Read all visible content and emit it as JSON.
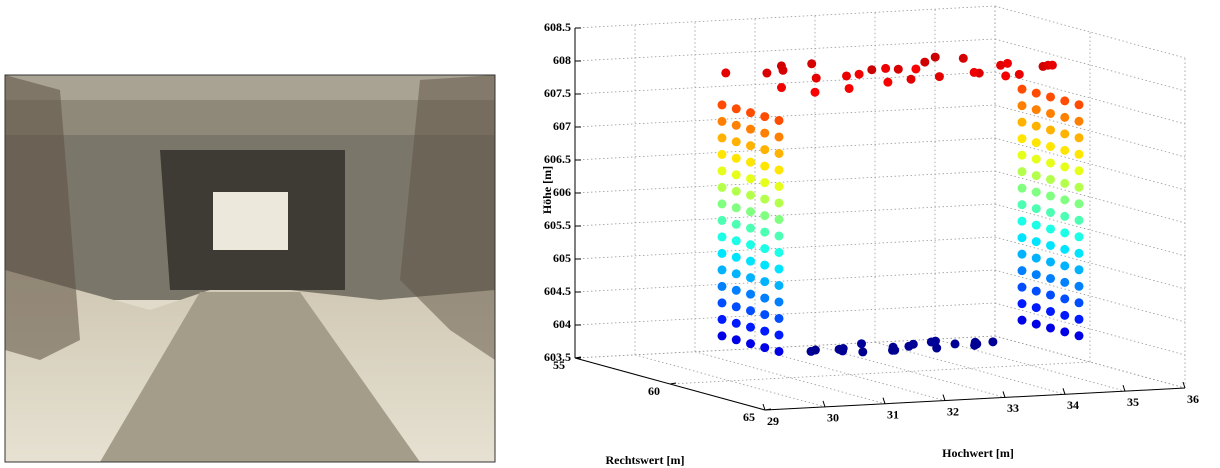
{
  "chart_data": {
    "type": "scatter3d",
    "xlabel": "Hochwert [m]",
    "ylabel": "Rechtswert [m]",
    "zlabel": "Höhe [m]",
    "xlim": [
      29,
      36
    ],
    "ylim": [
      55,
      65
    ],
    "zlim": [
      603.5,
      608.5
    ],
    "xticks": [
      29,
      30,
      31,
      32,
      33,
      34,
      35,
      36
    ],
    "yticks": [
      55,
      60,
      65
    ],
    "zticks": [
      603.5,
      604,
      604.5,
      605,
      605.5,
      606,
      606.5,
      607,
      607.5,
      608,
      608.5
    ],
    "grid": true,
    "colormap": "jet",
    "series": [
      {
        "x": [
          30.5,
          30.5,
          30.5,
          30.5,
          30.5
        ],
        "y": [
          58,
          58.75,
          59.5,
          60.25,
          61
        ],
        "z": [
          604,
          604,
          604,
          604,
          604
        ]
      },
      {
        "x": [
          30.5,
          30.5,
          30.5,
          30.5,
          30.5
        ],
        "y": [
          58,
          58.75,
          59.5,
          60.25,
          61
        ],
        "z": [
          604.25,
          604.25,
          604.25,
          604.25,
          604.25
        ]
      },
      {
        "x": [
          30.5,
          30.5,
          30.5,
          30.5,
          30.5
        ],
        "y": [
          58,
          58.75,
          59.5,
          60.25,
          61
        ],
        "z": [
          604.5,
          604.5,
          604.5,
          604.5,
          604.5
        ]
      },
      {
        "x": [
          30.5,
          30.5,
          30.5,
          30.5,
          30.5
        ],
        "y": [
          58,
          58.75,
          59.5,
          60.25,
          61
        ],
        "z": [
          604.75,
          604.75,
          604.75,
          604.75,
          604.75
        ]
      },
      {
        "x": [
          30.5,
          30.5,
          30.5,
          30.5,
          30.5
        ],
        "y": [
          58,
          58.75,
          59.5,
          60.25,
          61
        ],
        "z": [
          605,
          605,
          605,
          605,
          605
        ]
      },
      {
        "x": [
          30.5,
          30.5,
          30.5,
          30.5,
          30.5
        ],
        "y": [
          58,
          58.75,
          59.5,
          60.25,
          61
        ],
        "z": [
          605.25,
          605.25,
          605.25,
          605.25,
          605.25
        ]
      },
      {
        "x": [
          30.5,
          30.5,
          30.5,
          30.5,
          30.5
        ],
        "y": [
          58,
          58.75,
          59.5,
          60.25,
          61
        ],
        "z": [
          605.5,
          605.5,
          605.5,
          605.5,
          605.5
        ]
      },
      {
        "x": [
          30.5,
          30.5,
          30.5,
          30.5,
          30.5
        ],
        "y": [
          58,
          58.75,
          59.5,
          60.25,
          61
        ],
        "z": [
          605.75,
          605.75,
          605.75,
          605.75,
          605.75
        ]
      },
      {
        "x": [
          30.5,
          30.5,
          30.5,
          30.5,
          30.5
        ],
        "y": [
          58,
          58.75,
          59.5,
          60.25,
          61
        ],
        "z": [
          606,
          606,
          606,
          606,
          606
        ]
      },
      {
        "x": [
          30.5,
          30.5,
          30.5,
          30.5,
          30.5
        ],
        "y": [
          58,
          58.75,
          59.5,
          60.25,
          61
        ],
        "z": [
          606.25,
          606.25,
          606.25,
          606.25,
          606.25
        ]
      },
      {
        "x": [
          30.5,
          30.5,
          30.5,
          30.5,
          30.5
        ],
        "y": [
          58,
          58.75,
          59.5,
          60.25,
          61
        ],
        "z": [
          606.5,
          606.5,
          606.5,
          606.5,
          606.5
        ]
      },
      {
        "x": [
          30.5,
          30.5,
          30.5,
          30.5,
          30.5
        ],
        "y": [
          58,
          58.75,
          59.5,
          60.25,
          61
        ],
        "z": [
          606.75,
          606.75,
          606.75,
          606.75,
          606.75
        ]
      },
      {
        "x": [
          30.5,
          30.5,
          30.5,
          30.5,
          30.5
        ],
        "y": [
          58,
          58.75,
          59.5,
          60.25,
          61
        ],
        "z": [
          607,
          607,
          607,
          607,
          607
        ]
      },
      {
        "x": [
          30.5,
          30.5,
          30.5,
          30.5,
          30.5
        ],
        "y": [
          58,
          58.75,
          59.5,
          60.25,
          61
        ],
        "z": [
          607.25,
          607.25,
          607.25,
          607.25,
          607.25
        ]
      },
      {
        "x": [
          30.5,
          30.5,
          30.5,
          30.5,
          30.5
        ],
        "y": [
          58,
          58.75,
          59.5,
          60.25,
          61
        ],
        "z": [
          607.5,
          607.5,
          607.5,
          607.5,
          607.5
        ]
      },
      {
        "x": [
          35.5,
          35.5,
          35.5,
          35.5,
          35.5
        ],
        "y": [
          58,
          58.75,
          59.5,
          60.25,
          61
        ],
        "z": [
          604,
          604,
          604,
          604,
          604
        ]
      },
      {
        "x": [
          35.5,
          35.5,
          35.5,
          35.5,
          35.5
        ],
        "y": [
          58,
          58.75,
          59.5,
          60.25,
          61
        ],
        "z": [
          604.25,
          604.25,
          604.25,
          604.25,
          604.25
        ]
      },
      {
        "x": [
          35.5,
          35.5,
          35.5,
          35.5,
          35.5
        ],
        "y": [
          58,
          58.75,
          59.5,
          60.25,
          61
        ],
        "z": [
          604.5,
          604.5,
          604.5,
          604.5,
          604.5
        ]
      },
      {
        "x": [
          35.5,
          35.5,
          35.5,
          35.5,
          35.5
        ],
        "y": [
          58,
          58.75,
          59.5,
          60.25,
          61
        ],
        "z": [
          604.75,
          604.75,
          604.75,
          604.75,
          604.75
        ]
      },
      {
        "x": [
          35.5,
          35.5,
          35.5,
          35.5,
          35.5
        ],
        "y": [
          58,
          58.75,
          59.5,
          60.25,
          61
        ],
        "z": [
          605,
          605,
          605,
          605,
          605
        ]
      },
      {
        "x": [
          35.5,
          35.5,
          35.5,
          35.5,
          35.5
        ],
        "y": [
          58,
          58.75,
          59.5,
          60.25,
          61
        ],
        "z": [
          605.25,
          605.25,
          605.25,
          605.25,
          605.25
        ]
      },
      {
        "x": [
          35.5,
          35.5,
          35.5,
          35.5,
          35.5
        ],
        "y": [
          58,
          58.75,
          59.5,
          60.25,
          61
        ],
        "z": [
          605.5,
          605.5,
          605.5,
          605.5,
          605.5
        ]
      },
      {
        "x": [
          35.5,
          35.5,
          35.5,
          35.5,
          35.5
        ],
        "y": [
          58,
          58.75,
          59.5,
          60.25,
          61
        ],
        "z": [
          605.75,
          605.75,
          605.75,
          605.75,
          605.75
        ]
      },
      {
        "x": [
          35.5,
          35.5,
          35.5,
          35.5,
          35.5
        ],
        "y": [
          58,
          58.75,
          59.5,
          60.25,
          61
        ],
        "z": [
          606,
          606,
          606,
          606,
          606
        ]
      },
      {
        "x": [
          35.5,
          35.5,
          35.5,
          35.5,
          35.5
        ],
        "y": [
          58,
          58.75,
          59.5,
          60.25,
          61
        ],
        "z": [
          606.25,
          606.25,
          606.25,
          606.25,
          606.25
        ]
      },
      {
        "x": [
          35.5,
          35.5,
          35.5,
          35.5,
          35.5
        ],
        "y": [
          58,
          58.75,
          59.5,
          60.25,
          61
        ],
        "z": [
          606.5,
          606.5,
          606.5,
          606.5,
          606.5
        ]
      },
      {
        "x": [
          35.5,
          35.5,
          35.5,
          35.5,
          35.5
        ],
        "y": [
          58,
          58.75,
          59.5,
          60.25,
          61
        ],
        "z": [
          606.75,
          606.75,
          606.75,
          606.75,
          606.75
        ]
      },
      {
        "x": [
          35.5,
          35.5,
          35.5,
          35.5,
          35.5
        ],
        "y": [
          58,
          58.75,
          59.5,
          60.25,
          61
        ],
        "z": [
          607,
          607,
          607,
          607,
          607
        ]
      },
      {
        "x": [
          35.5,
          35.5,
          35.5,
          35.5,
          35.5
        ],
        "y": [
          58,
          58.75,
          59.5,
          60.25,
          61
        ],
        "z": [
          607.25,
          607.25,
          607.25,
          607.25,
          607.25
        ]
      },
      {
        "x": [
          35.5,
          35.5,
          35.5,
          35.5,
          35.5
        ],
        "y": [
          58,
          58.75,
          59.5,
          60.25,
          61
        ],
        "z": [
          607.5,
          607.5,
          607.5,
          607.5,
          607.5
        ]
      },
      {
        "x": [
          30.5,
          30.7,
          30.9,
          31.1,
          31.3,
          31.5,
          31.7,
          31.9,
          32.1,
          32.3,
          32.5,
          32.7,
          32.9,
          33.1,
          33.3,
          33.5,
          33.7,
          33.9,
          34.1,
          34.3,
          34.5,
          34.7,
          34.9,
          35.1,
          35.3,
          35.5,
          31.2,
          32.6,
          33.8,
          34.6
        ],
        "y": [
          58.2,
          60.5,
          59.1,
          61,
          58.6,
          59.8,
          60.9,
          58.3,
          59.5,
          60.2,
          58.9,
          61,
          59.7,
          58.4,
          60.6,
          59.2,
          58.1,
          60.8,
          59.9,
          58.7,
          60.3,
          59.4,
          61,
          58.5,
          60,
          59.6,
          59,
          60.1,
          58.8,
          60.7
        ],
        "z": [
          608.0,
          607.95,
          608.05,
          607.9,
          608.1,
          608.0,
          607.92,
          608.08,
          607.98,
          608.12,
          607.94,
          608.02,
          608.06,
          607.96,
          608.0,
          608.1,
          607.9,
          608.04,
          607.97,
          608.08,
          607.93,
          608.01,
          608.11,
          607.95,
          608.03,
          607.99,
          608.07,
          607.91,
          608.13,
          607.98
        ]
      },
      {
        "x": [
          32.3,
          32.5,
          32.7,
          32.9,
          33.1,
          33.3,
          33.5,
          33.7,
          33.9,
          34.1,
          34.3,
          34.5,
          34.7,
          34.9,
          35.1,
          35.3,
          32.8,
          33.6,
          34.4,
          35.0
        ],
        "y": [
          57,
          56.6,
          57.4,
          56.8,
          57.2,
          56.5,
          57.5,
          56.9,
          57.1,
          56.7,
          57.3,
          56.6,
          57,
          57.4,
          56.8,
          57.1,
          56.9,
          57.3,
          56.7,
          57.2
        ],
        "z": [
          603.6,
          603.58,
          603.62,
          603.6,
          603.57,
          603.63,
          603.6,
          603.59,
          603.61,
          603.6,
          603.58,
          603.62,
          603.6,
          603.6,
          603.59,
          603.61,
          603.6,
          603.58,
          603.62,
          603.6
        ]
      }
    ]
  }
}
